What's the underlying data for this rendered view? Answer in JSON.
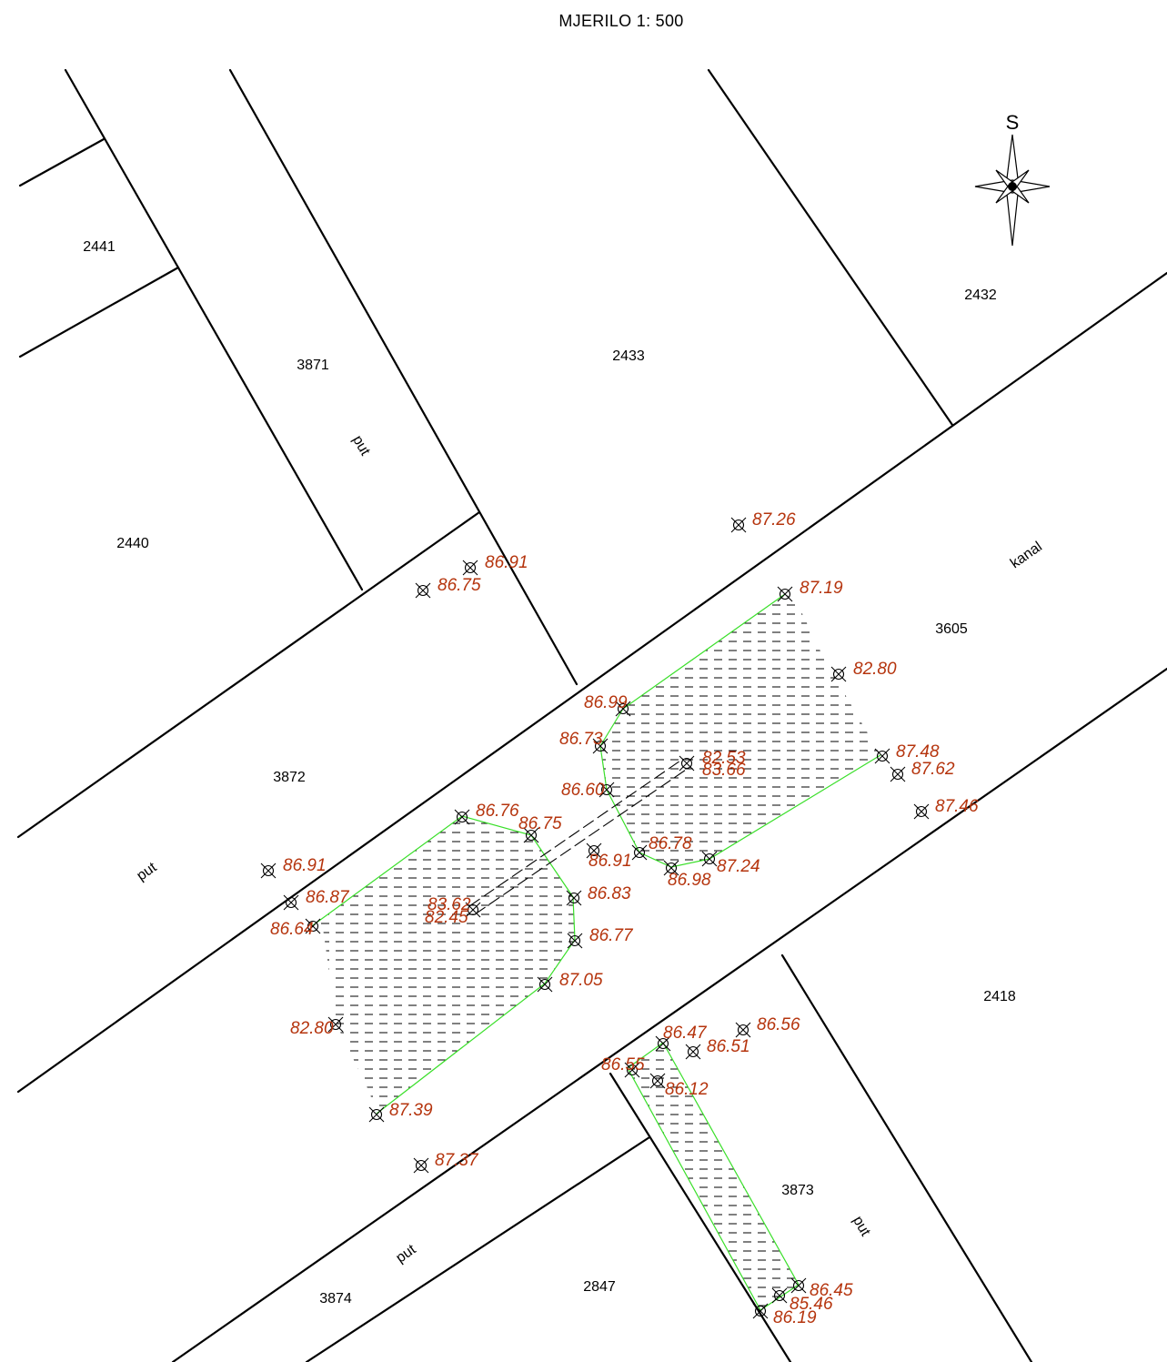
{
  "title": "MJERILO 1: 500",
  "compass_letter": "S",
  "colors": {
    "lines": "#000000",
    "outline": "#3adf2a",
    "elevation_text": "#b5340d",
    "background": "#ffffff"
  },
  "parcels": [
    "2441",
    "3871",
    "2433",
    "2432",
    "2440",
    "3605",
    "3872",
    "2418",
    "3873",
    "3874",
    "2847"
  ],
  "road_labels": [
    "put",
    "put",
    "put",
    "put"
  ],
  "canal_label": "kanal",
  "elevations": [
    "87.26",
    "86.91",
    "86.75",
    "87.19",
    "82.80",
    "86.99",
    "86.73",
    "82.53",
    "83.66",
    "87.48",
    "87.62",
    "86.60",
    "87.46",
    "86.76",
    "86.75",
    "86.78",
    "86.91",
    "87.24",
    "86.98",
    "86.91",
    "86.87",
    "83.62",
    "82.45",
    "86.83",
    "86.64",
    "86.77",
    "87.05",
    "82.80",
    "86.47",
    "86.56",
    "86.51",
    "86.55",
    "86.12",
    "87.39",
    "87.37",
    "86.45",
    "85.46",
    "86.19"
  ]
}
